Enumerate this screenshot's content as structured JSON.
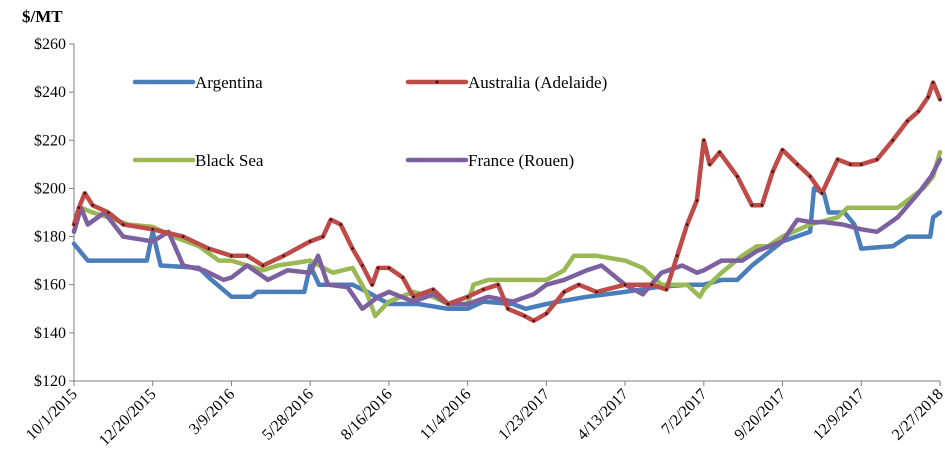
{
  "chart_data": {
    "type": "line",
    "unit_label": "$/MT",
    "y_ticks": [
      "$120",
      "$140",
      "$160",
      "$180",
      "$200",
      "$220",
      "$240",
      "$260"
    ],
    "ylim": [
      120,
      260
    ],
    "x_ticks": [
      "10/1/2015",
      "12/20/2015",
      "3/9/2016",
      "5/28/2016",
      "8/16/2016",
      "11/4/2016",
      "1/23/2017",
      "4/13/2017",
      "7/2/2017",
      "9/20/2017",
      "12/9/2017",
      "2/27/2018"
    ],
    "xlim": [
      "10/1/2015",
      "2/27/2018"
    ],
    "grid": false,
    "legend_position": "top-left, two columns",
    "series": [
      {
        "name": "Argentina",
        "color": "#4a7ebb",
        "points": [
          [
            "10/1/2015",
            177
          ],
          [
            "10/5/2015",
            175
          ],
          [
            "10/15/2015",
            170
          ],
          [
            "12/14/2015",
            170
          ],
          [
            "12/20/2015",
            182
          ],
          [
            "12/28/2015",
            168
          ],
          [
            "2/5/2016",
            167
          ],
          [
            "2/15/2016",
            163
          ],
          [
            "3/9/2016",
            155
          ],
          [
            "3/29/2016",
            155
          ],
          [
            "4/4/2016",
            157
          ],
          [
            "5/22/2016",
            157
          ],
          [
            "5/28/2016",
            168
          ],
          [
            "6/6/2016",
            160
          ],
          [
            "7/10/2016",
            160
          ],
          [
            "7/25/2016",
            157
          ],
          [
            "8/16/2016",
            152
          ],
          [
            "9/15/2016",
            152
          ],
          [
            "10/15/2016",
            150
          ],
          [
            "11/4/2016",
            150
          ],
          [
            "11/20/2016",
            153
          ],
          [
            "12/20/2016",
            152
          ],
          [
            "1/2/2017",
            150
          ],
          [
            "1/23/2017",
            152
          ],
          [
            "2/5/2017",
            153
          ],
          [
            "3/5/2017",
            155
          ],
          [
            "4/13/2017",
            157
          ],
          [
            "5/15/2017",
            159
          ],
          [
            "6/15/2017",
            160
          ],
          [
            "7/2/2017",
            160
          ],
          [
            "7/20/2017",
            162
          ],
          [
            "8/5/2017",
            162
          ],
          [
            "8/20/2017",
            168
          ],
          [
            "9/20/2017",
            178
          ],
          [
            "10/18/2017",
            182
          ],
          [
            "10/22/2017",
            200
          ],
          [
            "11/1/2017",
            198
          ],
          [
            "11/6/2017",
            190
          ],
          [
            "11/22/2017",
            190
          ],
          [
            "12/2/2017",
            185
          ],
          [
            "12/9/2017",
            175
          ],
          [
            "1/10/2018",
            176
          ],
          [
            "1/25/2018",
            180
          ],
          [
            "2/17/2018",
            180
          ],
          [
            "2/20/2018",
            188
          ],
          [
            "2/27/2018",
            190
          ]
        ]
      },
      {
        "name": "Australia (Adelaide)",
        "color": "#be4b48",
        "points": [
          [
            "10/1/2015",
            185
          ],
          [
            "10/6/2015",
            192
          ],
          [
            "10/12/2015",
            198
          ],
          [
            "10/20/2015",
            193
          ],
          [
            "11/5/2015",
            190
          ],
          [
            "11/20/2015",
            185
          ],
          [
            "12/20/2015",
            183
          ],
          [
            "1/20/2016",
            180
          ],
          [
            "2/15/2016",
            175
          ],
          [
            "3/9/2016",
            172
          ],
          [
            "3/25/2016",
            172
          ],
          [
            "4/10/2016",
            168
          ],
          [
            "5/1/2016",
            172
          ],
          [
            "5/28/2016",
            178
          ],
          [
            "6/10/2016",
            180
          ],
          [
            "6/18/2016",
            187
          ],
          [
            "6/28/2016",
            185
          ],
          [
            "7/10/2016",
            175
          ],
          [
            "7/20/2016",
            168
          ],
          [
            "7/30/2016",
            160
          ],
          [
            "8/5/2016",
            167
          ],
          [
            "8/16/2016",
            167
          ],
          [
            "8/30/2016",
            163
          ],
          [
            "9/10/2016",
            155
          ],
          [
            "9/30/2016",
            158
          ],
          [
            "10/15/2016",
            152
          ],
          [
            "11/4/2016",
            155
          ],
          [
            "11/20/2016",
            158
          ],
          [
            "12/5/2016",
            160
          ],
          [
            "12/15/2016",
            150
          ],
          [
            "1/1/2017",
            147
          ],
          [
            "1/10/2017",
            145
          ],
          [
            "1/23/2017",
            148
          ],
          [
            "2/10/2017",
            157
          ],
          [
            "2/25/2017",
            160
          ],
          [
            "3/15/2017",
            157
          ],
          [
            "4/13/2017",
            160
          ],
          [
            "5/10/2017",
            160
          ],
          [
            "5/25/2017",
            158
          ],
          [
            "6/5/2017",
            172
          ],
          [
            "6/15/2017",
            185
          ],
          [
            "6/25/2017",
            195
          ],
          [
            "7/2/2017",
            220
          ],
          [
            "7/8/2017",
            210
          ],
          [
            "7/18/2017",
            215
          ],
          [
            "8/5/2017",
            205
          ],
          [
            "8/20/2017",
            193
          ],
          [
            "8/30/2017",
            193
          ],
          [
            "9/10/2017",
            207
          ],
          [
            "9/20/2017",
            216
          ],
          [
            "10/5/2017",
            210
          ],
          [
            "10/18/2017",
            205
          ],
          [
            "10/30/2017",
            198
          ],
          [
            "11/15/2017",
            212
          ],
          [
            "11/28/2017",
            210
          ],
          [
            "12/9/2017",
            210
          ],
          [
            "12/25/2017",
            212
          ],
          [
            "1/10/2018",
            220
          ],
          [
            "1/25/2018",
            228
          ],
          [
            "2/5/2018",
            232
          ],
          [
            "2/15/2018",
            238
          ],
          [
            "2/20/2018",
            244
          ],
          [
            "2/27/2018",
            237
          ]
        ]
      },
      {
        "name": "Black Sea",
        "color": "#98b954",
        "points": [
          [
            "10/1/2015",
            182
          ],
          [
            "10/8/2015",
            192
          ],
          [
            "10/20/2015",
            190
          ],
          [
            "11/5/2015",
            188
          ],
          [
            "11/25/2015",
            185
          ],
          [
            "12/20/2015",
            184
          ],
          [
            "1/10/2016",
            180
          ],
          [
            "2/5/2016",
            176
          ],
          [
            "2/25/2016",
            170
          ],
          [
            "3/9/2016",
            170
          ],
          [
            "4/10/2016",
            166
          ],
          [
            "4/25/2016",
            168
          ],
          [
            "5/28/2016",
            170
          ],
          [
            "6/20/2016",
            165
          ],
          [
            "7/10/2016",
            167
          ],
          [
            "7/25/2016",
            156
          ],
          [
            "8/2/2016",
            147
          ],
          [
            "8/16/2016",
            153
          ],
          [
            "9/10/2016",
            157
          ],
          [
            "9/30/2016",
            155
          ],
          [
            "10/15/2016",
            152
          ],
          [
            "11/4/2016",
            152
          ],
          [
            "11/10/2016",
            160
          ],
          [
            "11/25/2016",
            162
          ],
          [
            "12/20/2016",
            162
          ],
          [
            "1/23/2017",
            162
          ],
          [
            "2/10/2017",
            166
          ],
          [
            "2/20/2017",
            172
          ],
          [
            "3/15/2017",
            172
          ],
          [
            "4/13/2017",
            170
          ],
          [
            "5/1/2017",
            167
          ],
          [
            "5/20/2017",
            160
          ],
          [
            "6/15/2017",
            160
          ],
          [
            "6/28/2017",
            155
          ],
          [
            "7/2/2017",
            158
          ],
          [
            "7/20/2017",
            165
          ],
          [
            "8/10/2017",
            172
          ],
          [
            "8/25/2017",
            176
          ],
          [
            "9/5/2017",
            176
          ],
          [
            "9/20/2017",
            180
          ],
          [
            "10/18/2017",
            185
          ],
          [
            "11/15/2017",
            188
          ],
          [
            "11/25/2017",
            192
          ],
          [
            "12/9/2017",
            192
          ],
          [
            "1/15/2018",
            192
          ],
          [
            "1/25/2018",
            195
          ],
          [
            "2/10/2018",
            200
          ],
          [
            "2/20/2018",
            205
          ],
          [
            "2/27/2018",
            215
          ]
        ]
      },
      {
        "name": "France (Rouen)",
        "color": "#7d60a0",
        "points": [
          [
            "10/1/2015",
            182
          ],
          [
            "10/8/2015",
            192
          ],
          [
            "10/15/2015",
            185
          ],
          [
            "11/1/2015",
            190
          ],
          [
            "11/20/2015",
            180
          ],
          [
            "12/20/2015",
            178
          ],
          [
            "1/5/2016",
            182
          ],
          [
            "1/20/2016",
            168
          ],
          [
            "2/10/2016",
            166
          ],
          [
            "3/1/2016",
            162
          ],
          [
            "3/9/2016",
            163
          ],
          [
            "3/25/2016",
            168
          ],
          [
            "4/15/2016",
            162
          ],
          [
            "5/5/2016",
            166
          ],
          [
            "5/28/2016",
            165
          ],
          [
            "6/5/2016",
            172
          ],
          [
            "6/15/2016",
            160
          ],
          [
            "7/5/2016",
            159
          ],
          [
            "7/20/2016",
            150
          ],
          [
            "8/5/2016",
            155
          ],
          [
            "8/16/2016",
            157
          ],
          [
            "9/10/2016",
            153
          ],
          [
            "9/30/2016",
            156
          ],
          [
            "10/15/2016",
            152
          ],
          [
            "11/4/2016",
            152
          ],
          [
            "11/25/2016",
            155
          ],
          [
            "12/20/2016",
            153
          ],
          [
            "1/10/2017",
            156
          ],
          [
            "1/23/2017",
            160
          ],
          [
            "2/10/2017",
            162
          ],
          [
            "3/5/2017",
            166
          ],
          [
            "3/20/2017",
            168
          ],
          [
            "4/13/2017",
            160
          ],
          [
            "5/1/2017",
            156
          ],
          [
            "5/20/2017",
            165
          ],
          [
            "6/10/2017",
            168
          ],
          [
            "6/25/2017",
            165
          ],
          [
            "7/2/2017",
            166
          ],
          [
            "7/20/2017",
            170
          ],
          [
            "8/10/2017",
            170
          ],
          [
            "8/25/2017",
            174
          ],
          [
            "9/20/2017",
            178
          ],
          [
            "10/5/2017",
            187
          ],
          [
            "10/18/2017",
            186
          ],
          [
            "11/1/2017",
            186
          ],
          [
            "11/20/2017",
            185
          ],
          [
            "12/9/2017",
            183
          ],
          [
            "12/25/2017",
            182
          ],
          [
            "1/15/2018",
            188
          ],
          [
            "2/5/2018",
            198
          ],
          [
            "2/18/2018",
            205
          ],
          [
            "2/27/2018",
            212
          ]
        ]
      }
    ]
  }
}
